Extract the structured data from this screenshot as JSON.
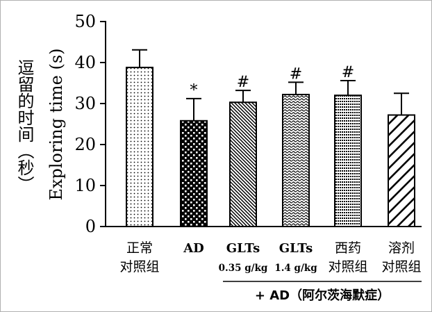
{
  "chart_data": {
    "type": "bar",
    "ylabel_cn": "逗留的时间（秒）",
    "ylabel_en": "Exploring time (s)",
    "ylim": [
      0,
      50
    ],
    "yticks": [
      0,
      10,
      20,
      30,
      40,
      50
    ],
    "grid": false,
    "categories": [
      {
        "line1": "正常",
        "line2": "对照组"
      },
      {
        "line1": "AD",
        "line2": ""
      },
      {
        "line1": "GLTs",
        "line2": "0.35 g/kg"
      },
      {
        "line1": "GLTs",
        "line2": "1.4 g/kg"
      },
      {
        "line1": "西药",
        "line2": "对照组"
      },
      {
        "line1": "溶剂",
        "line2": "对照组"
      }
    ],
    "values": [
      38.8,
      25.8,
      30.3,
      32.2,
      32.0,
      27.2
    ],
    "errors": [
      4.3,
      5.4,
      2.9,
      3.0,
      3.6,
      5.3
    ],
    "markers": [
      "",
      "*",
      "#",
      "#",
      "#",
      ""
    ],
    "patterns": [
      "dots",
      "checker",
      "diag-lr",
      "wavy",
      "hlines",
      "diag-wide"
    ],
    "group_label": "+ AD（阿尔茨海默症）"
  }
}
